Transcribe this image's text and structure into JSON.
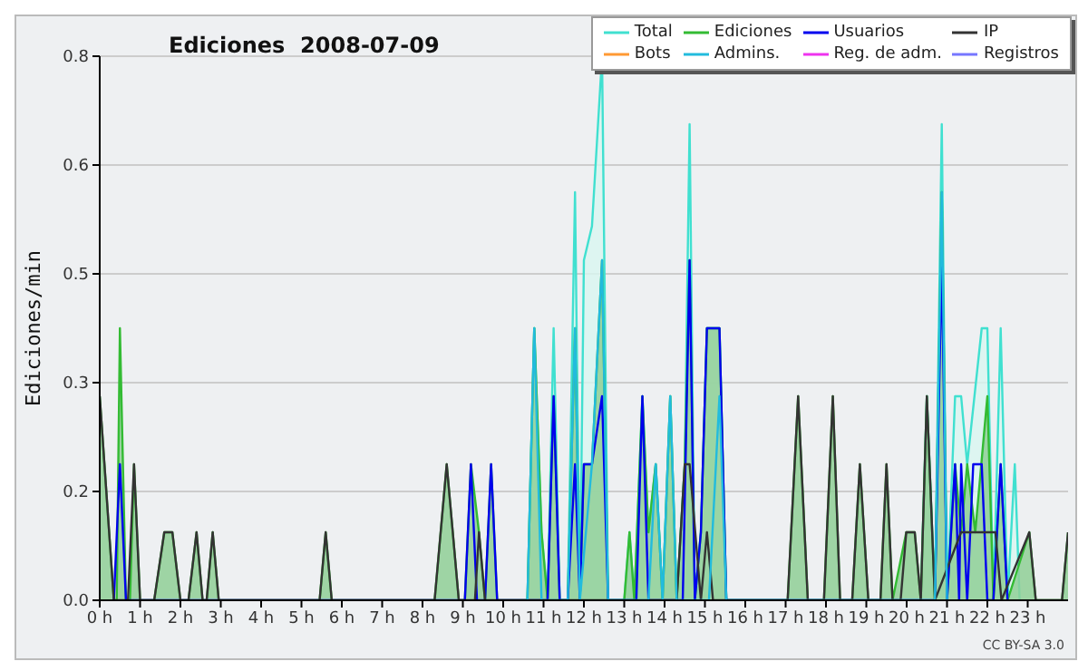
{
  "chart_data": {
    "type": "line",
    "title": "Ediciones  2008-07-09",
    "ylabel": "Ediciones/min",
    "annotations": [
      "CC BY-SA 3.0"
    ],
    "xlim": [
      0,
      24
    ],
    "ylim": [
      0,
      0.8
    ],
    "xticks": [
      {
        "value": 0,
        "label": "0 h"
      },
      {
        "value": 1,
        "label": "1 h"
      },
      {
        "value": 2,
        "label": "2 h"
      },
      {
        "value": 3,
        "label": "3 h"
      },
      {
        "value": 4,
        "label": "4 h"
      },
      {
        "value": 5,
        "label": "5 h"
      },
      {
        "value": 6,
        "label": "6 h"
      },
      {
        "value": 7,
        "label": "7 h"
      },
      {
        "value": 8,
        "label": "8 h"
      },
      {
        "value": 9,
        "label": "9 h"
      },
      {
        "value": 10,
        "label": "10 h"
      },
      {
        "value": 11,
        "label": "11 h"
      },
      {
        "value": 12,
        "label": "12 h"
      },
      {
        "value": 13,
        "label": "13 h"
      },
      {
        "value": 14,
        "label": "14 h"
      },
      {
        "value": 15,
        "label": "15 h"
      },
      {
        "value": 16,
        "label": "16 h"
      },
      {
        "value": 17,
        "label": "17 h"
      },
      {
        "value": 18,
        "label": "18 h"
      },
      {
        "value": 19,
        "label": "19 h"
      },
      {
        "value": 20,
        "label": "20 h"
      },
      {
        "value": 21,
        "label": "21 h"
      },
      {
        "value": 22,
        "label": "22 h"
      },
      {
        "value": 23,
        "label": "23 h"
      }
    ],
    "yticks": [
      {
        "value": 0,
        "label": "0.0"
      },
      {
        "value": 0.16,
        "label": "0.2"
      },
      {
        "value": 0.32,
        "label": "0.3"
      },
      {
        "value": 0.48,
        "label": "0.5"
      },
      {
        "value": 0.64,
        "label": "0.6"
      },
      0.8
    ],
    "grid": "y",
    "legend": "top right",
    "marker": "none",
    "series": [
      {
        "name": "Total",
        "type": "area",
        "color": "#40e0d0",
        "x": [
          10.6,
          10.77,
          10.95,
          11.1,
          11.25,
          11.4,
          11.6,
          11.78,
          11.9,
          12.0,
          12.2,
          12.45,
          12.6,
          13.0,
          13.13,
          13.25,
          13.45,
          13.6,
          13.78,
          13.95,
          14.14,
          14.3,
          14.5,
          14.62,
          14.75,
          14.9,
          15.05,
          15.36,
          15.53,
          20.35,
          20.5,
          20.7,
          20.87,
          21.0,
          21.2,
          21.35,
          21.5,
          21.86,
          22.0,
          22.15,
          22.33,
          22.5,
          22.68,
          22.8
        ],
        "values": [
          0,
          0.4,
          0.1,
          0,
          0.4,
          0,
          0,
          0.6,
          0,
          0.5,
          0.55,
          0.8,
          0,
          0,
          0.1,
          0,
          0.3,
          0.1,
          0.2,
          0,
          0.3,
          0,
          0.2,
          0.7,
          0,
          0.1,
          0.4,
          0.4,
          0,
          0,
          0.3,
          0,
          0.7,
          0,
          0.3,
          0.3,
          0.2,
          0.4,
          0.4,
          0,
          0.4,
          0,
          0.2,
          0
        ]
      },
      {
        "name": "Ediciones",
        "type": "area",
        "color": "#33bb33",
        "x": [
          0,
          0.35,
          0.42,
          0.5,
          0.65,
          0.75,
          0.85,
          1.0,
          1.35,
          1.6,
          1.8,
          2.0,
          2.2,
          2.4,
          2.55,
          2.65,
          2.8,
          2.95,
          5.45,
          5.6,
          5.75,
          8.3,
          8.6,
          8.9,
          9.05,
          9.2,
          9.4,
          9.55,
          9.7,
          9.85,
          10.6,
          10.77,
          10.95,
          11.1,
          11.25,
          11.4,
          11.6,
          11.78,
          11.9,
          12.0,
          12.2,
          12.45,
          12.6,
          13.0,
          13.13,
          13.25,
          13.45,
          13.6,
          13.78,
          13.95,
          14.14,
          14.3,
          14.5,
          14.62,
          14.75,
          14.9,
          15.05,
          15.36,
          15.53,
          17.05,
          17.31,
          17.55,
          17.95,
          18.17,
          18.35,
          18.65,
          18.84,
          19.05,
          19.35,
          19.5,
          19.65,
          19.99,
          20.2,
          20.35,
          20.5,
          20.7,
          20.87,
          21.0,
          21.2,
          21.35,
          21.5,
          21.7,
          22.0,
          22.15,
          22.33,
          22.5,
          23.04,
          23.2,
          23.85,
          24
        ],
        "values": [
          0.3,
          0,
          0,
          0.4,
          0,
          0,
          0.2,
          0,
          0,
          0.1,
          0.1,
          0,
          0,
          0.1,
          0,
          0,
          0.1,
          0,
          0,
          0.1,
          0,
          0,
          0.2,
          0,
          0,
          0.2,
          0.1,
          0,
          0.2,
          0,
          0,
          0.4,
          0.1,
          0,
          0.3,
          0,
          0,
          0.4,
          0,
          0.2,
          0.2,
          0.5,
          0,
          0,
          0.1,
          0,
          0.3,
          0.1,
          0.2,
          0,
          0.3,
          0,
          0.2,
          0.5,
          0,
          0.1,
          0.4,
          0.4,
          0,
          0,
          0.3,
          0,
          0,
          0.3,
          0,
          0,
          0.2,
          0,
          0,
          0.2,
          0,
          0.1,
          0.1,
          0,
          0.3,
          0,
          0.6,
          0,
          0.2,
          0.1,
          0.2,
          0.1,
          0.3,
          0,
          0.2,
          0,
          0.1,
          0,
          0,
          0.1
        ]
      },
      {
        "name": "Usuarios",
        "type": "line",
        "color": "#0000ee",
        "x": [
          0.35,
          0.5,
          0.65,
          9.05,
          9.2,
          9.35,
          9.55,
          9.7,
          9.85,
          11.1,
          11.25,
          11.4,
          11.6,
          11.78,
          11.9,
          12.0,
          12.2,
          12.45,
          12.6,
          13.3,
          13.45,
          13.6,
          14.45,
          14.62,
          14.75,
          14.9,
          15.05,
          15.36,
          15.53,
          20.7,
          20.87,
          21.0,
          21.2,
          21.3,
          21.35,
          21.5,
          21.65,
          21.86,
          22.0,
          22.15,
          22.33,
          22.5
        ],
        "values": [
          0,
          0.2,
          0,
          0,
          0.2,
          0,
          0,
          0.2,
          0,
          0,
          0.3,
          0,
          0,
          0.2,
          0,
          0.2,
          0.2,
          0.3,
          0,
          0,
          0.3,
          0,
          0,
          0.5,
          0,
          0.1,
          0.4,
          0.4,
          0,
          0,
          0.5,
          0,
          0.2,
          0,
          0.2,
          0,
          0.2,
          0.2,
          0,
          0,
          0.2,
          0
        ]
      },
      {
        "name": "IP",
        "type": "line",
        "color": "#333333",
        "x": [
          0,
          0.35,
          0.7,
          0.85,
          1.0,
          1.35,
          1.6,
          1.8,
          2.0,
          2.2,
          2.4,
          2.55,
          2.65,
          2.8,
          2.95,
          5.45,
          5.6,
          5.75,
          8.3,
          8.6,
          8.9,
          9.3,
          9.4,
          9.55,
          14.3,
          14.5,
          14.62,
          14.9,
          15.05,
          15.2,
          17.05,
          17.31,
          17.55,
          17.95,
          18.17,
          18.35,
          18.65,
          18.84,
          19.05,
          19.35,
          19.5,
          19.65,
          19.85,
          19.99,
          20.2,
          20.35,
          20.5,
          20.7,
          21.35,
          22.2,
          22.35,
          23.04,
          23.2,
          23.85,
          24
        ],
        "values": [
          0.3,
          0,
          0,
          0.2,
          0,
          0,
          0.1,
          0.1,
          0,
          0,
          0.1,
          0,
          0,
          0.1,
          0,
          0,
          0.1,
          0,
          0,
          0.2,
          0,
          0,
          0.1,
          0,
          0,
          0.2,
          0.2,
          0,
          0.1,
          0,
          0,
          0.3,
          0,
          0,
          0.3,
          0,
          0,
          0.2,
          0,
          0,
          0.2,
          0,
          0,
          0.1,
          0.1,
          0,
          0.3,
          0,
          0.1,
          0.1,
          0,
          0.1,
          0,
          0,
          0.1
        ]
      },
      {
        "name": "Bots",
        "type": "line",
        "color": "#ff9933"
      },
      {
        "name": "Admins.",
        "type": "line",
        "color": "#22bbdd",
        "x": [
          10.6,
          10.77,
          10.95,
          11.6,
          11.78,
          11.9,
          12.2,
          12.45,
          12.6,
          13.6,
          13.78,
          13.95,
          14.14,
          14.3,
          15.1,
          15.36,
          15.53,
          20.7,
          20.87,
          21.0
        ],
        "values": [
          0,
          0.4,
          0,
          0,
          0.4,
          0,
          0.2,
          0.5,
          0,
          0,
          0.2,
          0,
          0.3,
          0,
          0,
          0.3,
          0,
          0,
          0.6,
          0
        ]
      },
      {
        "name": "Reg. de adm.",
        "type": "line",
        "color": "#ee33ee"
      },
      {
        "name": "Registros",
        "type": "line",
        "color": "#7777ff"
      }
    ]
  }
}
